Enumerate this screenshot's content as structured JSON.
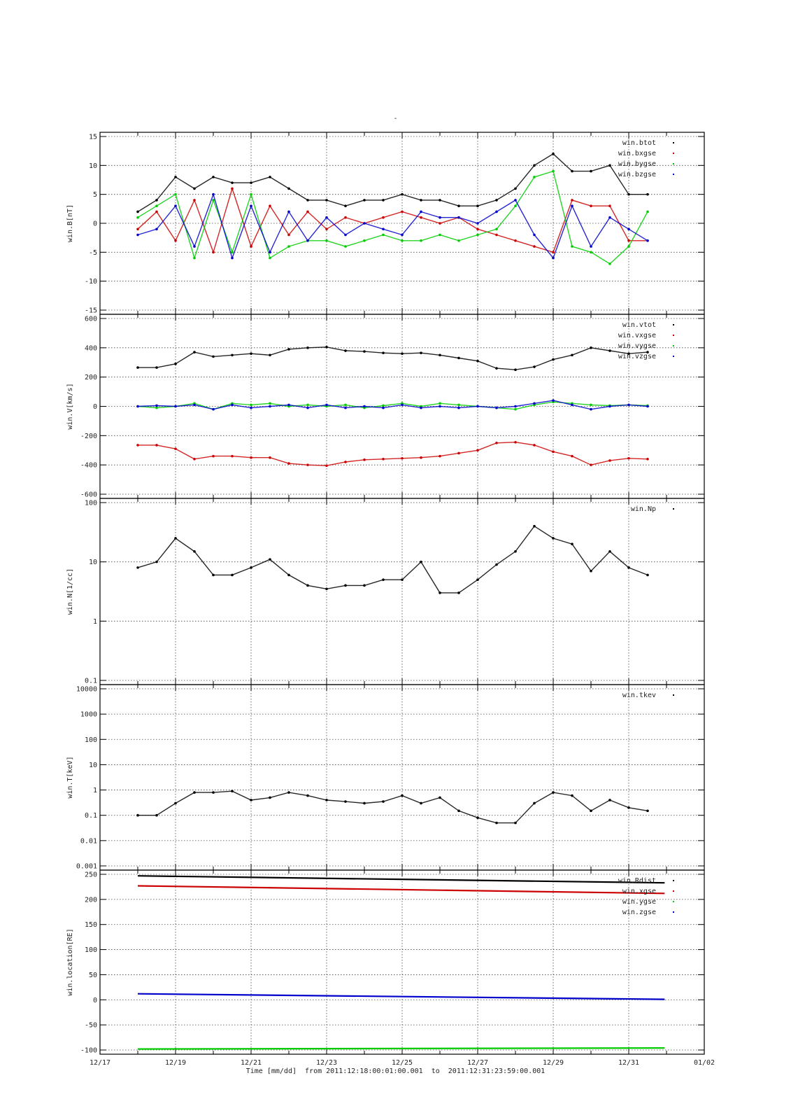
{
  "figure": {
    "title": "-",
    "xcaption": {
      "label": "Time [mm/dd]",
      "from_word": "from",
      "from": "2011:12:18:00:01:00.001",
      "to_word": "to",
      "to": "2011:12:31:23:59:00.001"
    }
  },
  "colors": {
    "black": "#000000",
    "red": "#cc0000",
    "green": "#00cc00",
    "blue": "#0000cc",
    "grid": "#444444"
  },
  "chart_data": [
    {
      "type": "scatter",
      "ylabel": "win.B[nT]",
      "yscale": "linear",
      "ylim": [
        -15,
        15
      ],
      "yticks": [
        -15,
        -10,
        -5,
        0,
        5,
        10,
        15
      ],
      "ytick_labels": [
        "-15",
        "-10",
        "-5",
        "0",
        "5",
        "10",
        "15"
      ],
      "grid": true,
      "legend": "top-right",
      "x": [
        "12/18",
        "12/18.5",
        "12/19",
        "12/19.5",
        "12/20",
        "12/20.5",
        "12/21",
        "12/21.5",
        "12/22",
        "12/22.5",
        "12/23",
        "12/23.5",
        "12/24",
        "12/24.5",
        "12/25",
        "12/25.5",
        "12/26",
        "12/26.5",
        "12/27",
        "12/27.5",
        "12/28",
        "12/28.5",
        "12/29",
        "12/29.5",
        "12/30",
        "12/30.5",
        "12/31",
        "12/31.5"
      ],
      "series": [
        {
          "name": "win.btot",
          "color": "#000000",
          "values": [
            2,
            4,
            8,
            6,
            8,
            7,
            7,
            8,
            6,
            4,
            4,
            3,
            4,
            4,
            5,
            4,
            4,
            3,
            3,
            4,
            6,
            10,
            12,
            9,
            9,
            10,
            5,
            5
          ]
        },
        {
          "name": "win.bxgse",
          "color": "#cc0000",
          "values": [
            -1,
            2,
            -3,
            4,
            -5,
            6,
            -4,
            3,
            -2,
            2,
            -1,
            1,
            0,
            1,
            2,
            1,
            0,
            1,
            -1,
            -2,
            -3,
            -4,
            -5,
            4,
            3,
            3,
            -3,
            -3
          ]
        },
        {
          "name": "win.bygse",
          "color": "#00cc00",
          "values": [
            1,
            3,
            5,
            -6,
            4,
            -5,
            5,
            -6,
            -4,
            -3,
            -3,
            -4,
            -3,
            -2,
            -3,
            -3,
            -2,
            -3,
            -2,
            -1,
            3,
            8,
            9,
            -4,
            -5,
            -7,
            -4,
            2
          ]
        },
        {
          "name": "win.bzgse",
          "color": "#0000cc",
          "values": [
            -2,
            -1,
            3,
            -4,
            5,
            -6,
            3,
            -5,
            2,
            -3,
            1,
            -2,
            0,
            -1,
            -2,
            2,
            1,
            1,
            0,
            2,
            4,
            -2,
            -6,
            3,
            -4,
            1,
            -1,
            -3
          ]
        }
      ]
    },
    {
      "type": "scatter",
      "ylabel": "win.V[km/s]",
      "yscale": "linear",
      "ylim": [
        -600,
        600
      ],
      "yticks": [
        -600,
        -400,
        -200,
        0,
        200,
        400,
        600
      ],
      "ytick_labels": [
        "-600",
        "-400",
        "-200",
        "0",
        "200",
        "400",
        "600"
      ],
      "grid": true,
      "legend": "top-right",
      "x": [
        "12/18",
        "12/18.5",
        "12/19",
        "12/19.5",
        "12/20",
        "12/20.5",
        "12/21",
        "12/21.5",
        "12/22",
        "12/22.5",
        "12/23",
        "12/23.5",
        "12/24",
        "12/24.5",
        "12/25",
        "12/25.5",
        "12/26",
        "12/26.5",
        "12/27",
        "12/27.5",
        "12/28",
        "12/28.5",
        "12/29",
        "12/29.5",
        "12/30",
        "12/30.5",
        "12/31",
        "12/31.5"
      ],
      "series": [
        {
          "name": "win.vtot",
          "color": "#000000",
          "values": [
            265,
            265,
            290,
            370,
            340,
            350,
            360,
            350,
            390,
            400,
            405,
            380,
            375,
            365,
            360,
            365,
            350,
            330,
            310,
            260,
            250,
            270,
            320,
            350,
            400,
            380,
            360,
            370
          ]
        },
        {
          "name": "win.vxgse",
          "color": "#cc0000",
          "values": [
            -265,
            -265,
            -290,
            -360,
            -340,
            -340,
            -350,
            -350,
            -390,
            -400,
            -405,
            -380,
            -365,
            -360,
            -355,
            -350,
            -340,
            -320,
            -300,
            -250,
            -245,
            -265,
            -310,
            -340,
            -400,
            -370,
            -355,
            -360
          ]
        },
        {
          "name": "win.vygse",
          "color": "#00cc00",
          "values": [
            0,
            -10,
            0,
            20,
            -20,
            20,
            10,
            20,
            0,
            10,
            0,
            10,
            -10,
            5,
            20,
            0,
            20,
            10,
            0,
            -10,
            -20,
            10,
            30,
            20,
            10,
            5,
            10,
            5
          ]
        },
        {
          "name": "win.vzgse",
          "color": "#0000cc",
          "values": [
            0,
            5,
            0,
            10,
            -20,
            10,
            -10,
            0,
            10,
            -10,
            10,
            -10,
            0,
            -10,
            10,
            -10,
            0,
            -10,
            0,
            -10,
            0,
            20,
            40,
            10,
            -20,
            0,
            10,
            0
          ]
        }
      ]
    },
    {
      "type": "scatter",
      "ylabel": "win.N[1/cc]",
      "yscale": "log",
      "ylim": [
        0.1,
        100
      ],
      "yticks": [
        0.1,
        1,
        10,
        100
      ],
      "ytick_labels": [
        "0.1",
        "1",
        "10",
        "100"
      ],
      "grid": true,
      "legend": "top-right",
      "x": [
        "12/18",
        "12/18.5",
        "12/19",
        "12/19.5",
        "12/20",
        "12/20.5",
        "12/21",
        "12/21.5",
        "12/22",
        "12/22.5",
        "12/23",
        "12/23.5",
        "12/24",
        "12/24.5",
        "12/25",
        "12/25.5",
        "12/26",
        "12/26.5",
        "12/27",
        "12/27.5",
        "12/28",
        "12/28.5",
        "12/29",
        "12/29.5",
        "12/30",
        "12/30.5",
        "12/31",
        "12/31.5"
      ],
      "series": [
        {
          "name": "win.Np",
          "color": "#000000",
          "values": [
            8,
            10,
            25,
            15,
            6,
            6,
            8,
            11,
            6,
            4,
            3.5,
            4,
            4,
            5,
            5,
            10,
            3,
            3,
            5,
            9,
            15,
            40,
            25,
            20,
            7,
            15,
            8,
            6
          ]
        }
      ]
    },
    {
      "type": "scatter",
      "ylabel": "win.T[keV]",
      "yscale": "log",
      "ylim": [
        0.001,
        10000
      ],
      "yticks": [
        0.001,
        0.01,
        0.1,
        1,
        10,
        100,
        1000,
        10000
      ],
      "ytick_labels": [
        "0.001",
        "0.01",
        "0.1",
        "1",
        "10",
        "100",
        "1000",
        "10000"
      ],
      "grid": true,
      "legend": "top-right",
      "x": [
        "12/18",
        "12/18.5",
        "12/19",
        "12/19.5",
        "12/20",
        "12/20.5",
        "12/21",
        "12/21.5",
        "12/22",
        "12/22.5",
        "12/23",
        "12/23.5",
        "12/24",
        "12/24.5",
        "12/25",
        "12/25.5",
        "12/26",
        "12/26.5",
        "12/27",
        "12/27.5",
        "12/28",
        "12/28.5",
        "12/29",
        "12/29.5",
        "12/30",
        "12/30.5",
        "12/31",
        "12/31.5"
      ],
      "series": [
        {
          "name": "win.tkev",
          "color": "#000000",
          "values": [
            0.1,
            0.1,
            0.3,
            0.8,
            0.8,
            0.9,
            0.4,
            0.5,
            0.8,
            0.6,
            0.4,
            0.35,
            0.3,
            0.35,
            0.6,
            0.3,
            0.5,
            0.15,
            0.08,
            0.05,
            0.05,
            0.3,
            0.8,
            0.6,
            0.15,
            0.4,
            0.2,
            0.15
          ]
        }
      ]
    },
    {
      "type": "line",
      "ylabel": "win.location[RE]",
      "yscale": "linear",
      "ylim": [
        -100,
        250
      ],
      "yticks": [
        -100,
        -50,
        0,
        50,
        100,
        150,
        200,
        250
      ],
      "ytick_labels": [
        "-100",
        "-50",
        "0",
        "50",
        "100",
        "150",
        "200",
        "250"
      ],
      "xtick_labels": [
        "12/17",
        "12/19",
        "12/21",
        "12/23",
        "12/25",
        "12/27",
        "12/29",
        "12/31",
        "01/02"
      ],
      "grid": true,
      "legend": "top-right",
      "x": [
        "12/18",
        "12/31.95"
      ],
      "series": [
        {
          "name": "win.Rdist",
          "color": "#000000",
          "values": [
            247,
            233
          ]
        },
        {
          "name": "win.xgse",
          "color": "#cc0000",
          "values": [
            227,
            212
          ]
        },
        {
          "name": "win.ygse",
          "color": "#00cc00",
          "values": [
            -98,
            -96
          ]
        },
        {
          "name": "win.zgse",
          "color": "#0000cc",
          "values": [
            12,
            1
          ]
        }
      ]
    }
  ]
}
